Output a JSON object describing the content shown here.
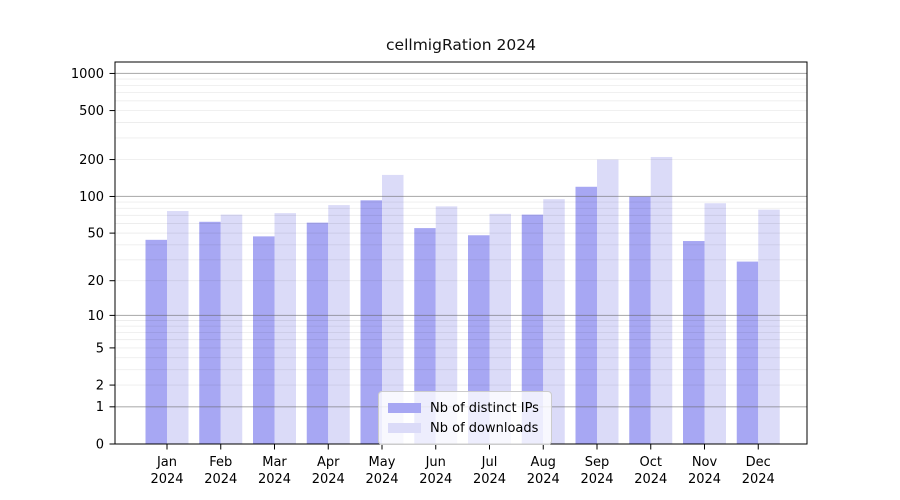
{
  "chart_data": {
    "type": "bar",
    "title": "cellmigRation 2024",
    "categories": [
      "Jan",
      "Feb",
      "Mar",
      "Apr",
      "May",
      "Jun",
      "Jul",
      "Aug",
      "Sep",
      "Oct",
      "Nov",
      "Dec"
    ],
    "category_year": "2024",
    "series": [
      {
        "name": "Nb of distinct IPs",
        "color": "#a7a7f3",
        "values": [
          44,
          62,
          47,
          61,
          93,
          55,
          48,
          71,
          120,
          100,
          43,
          29
        ]
      },
      {
        "name": "Nb of downloads",
        "color": "#dbdbf8",
        "values": [
          76,
          71,
          73,
          85,
          150,
          83,
          72,
          95,
          200,
          210,
          88,
          78
        ]
      }
    ],
    "xlabel": "",
    "ylabel": "",
    "y_scale": "log1p",
    "ylim": [
      0,
      1240
    ],
    "y_ticks": [
      0,
      1,
      2,
      5,
      10,
      20,
      50,
      100,
      200,
      500,
      1000
    ],
    "y_major_gridlines": [
      1,
      10,
      100,
      1000
    ],
    "grid": true,
    "legend": {
      "position": "bottom-center",
      "entries": [
        "Nb of distinct IPs",
        "Nb of downloads"
      ]
    }
  },
  "colors": {
    "axis": "#000000",
    "grid_major": "rgba(100,100,100,0.50)",
    "grid_minor": "rgba(0,0,0,0.07)",
    "text": "#000000",
    "background": "#ffffff"
  }
}
